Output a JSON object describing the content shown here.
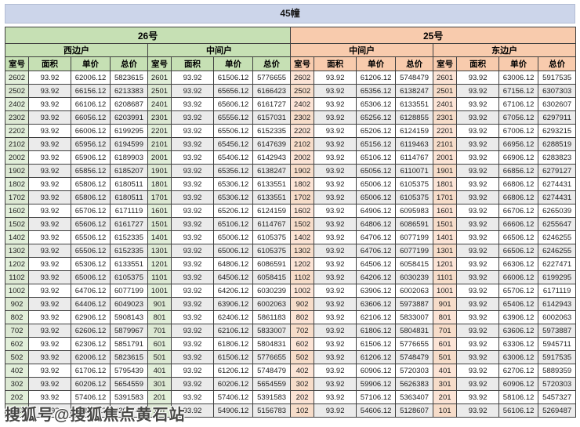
{
  "title": "45幢",
  "watermark": "搜狐号@搜狐焦点黄石站",
  "colors": {
    "title_bar": "#ccd5ea",
    "green_header": "#c6e0b4",
    "green_room_cell": "#e2efda",
    "orange_header": "#f8cbad",
    "orange_room_cell": "#fce4d6",
    "stripe_row": "#ebebeb",
    "grid_border": "#404040"
  },
  "table": {
    "unit_groups": [
      {
        "label": "26号",
        "theme": "green"
      },
      {
        "label": "25号",
        "theme": "orange"
      }
    ],
    "column_headers": [
      "室号",
      "面积",
      "单价",
      "总价"
    ],
    "sections": [
      {
        "position": "西边户",
        "theme": "green",
        "rows": [
          [
            "2602",
            "93.92",
            "62006.12",
            "5823615"
          ],
          [
            "2502",
            "93.92",
            "66156.12",
            "6213383"
          ],
          [
            "2402",
            "93.92",
            "66106.12",
            "6208687"
          ],
          [
            "2302",
            "93.92",
            "66056.12",
            "6203991"
          ],
          [
            "2202",
            "93.92",
            "66006.12",
            "6199295"
          ],
          [
            "2102",
            "93.92",
            "65956.12",
            "6194599"
          ],
          [
            "2002",
            "93.92",
            "65906.12",
            "6189903"
          ],
          [
            "1902",
            "93.92",
            "65856.12",
            "6185207"
          ],
          [
            "1802",
            "93.92",
            "65806.12",
            "6180511"
          ],
          [
            "1702",
            "93.92",
            "65806.12",
            "6180511"
          ],
          [
            "1602",
            "93.92",
            "65706.12",
            "6171119"
          ],
          [
            "1502",
            "93.92",
            "65606.12",
            "6161727"
          ],
          [
            "1402",
            "93.92",
            "65506.12",
            "6152335"
          ],
          [
            "1302",
            "93.92",
            "65506.12",
            "6152335"
          ],
          [
            "1202",
            "93.92",
            "65306.12",
            "6133551"
          ],
          [
            "1102",
            "93.92",
            "65006.12",
            "6105375"
          ],
          [
            "1002",
            "93.92",
            "64706.12",
            "6077199"
          ],
          [
            "902",
            "93.92",
            "64406.12",
            "6049023"
          ],
          [
            "802",
            "93.92",
            "62906.12",
            "5908143"
          ],
          [
            "702",
            "93.92",
            "62606.12",
            "5879967"
          ],
          [
            "602",
            "93.92",
            "62306.12",
            "5851791"
          ],
          [
            "502",
            "93.92",
            "62006.12",
            "5823615"
          ],
          [
            "402",
            "93.92",
            "61706.12",
            "5795439"
          ],
          [
            "302",
            "93.92",
            "60206.12",
            "5654559"
          ],
          [
            "202",
            "93.92",
            "57406.12",
            "5391583"
          ],
          [
            "102",
            "93.92",
            "55406.12",
            "5203743"
          ]
        ]
      },
      {
        "position": "中间户",
        "theme": "green",
        "rows": [
          [
            "2601",
            "93.92",
            "61506.12",
            "5776655"
          ],
          [
            "2501",
            "93.92",
            "65656.12",
            "6166423"
          ],
          [
            "2401",
            "93.92",
            "65606.12",
            "6161727"
          ],
          [
            "2301",
            "93.92",
            "65556.12",
            "6157031"
          ],
          [
            "2201",
            "93.92",
            "65506.12",
            "6152335"
          ],
          [
            "2101",
            "93.92",
            "65456.12",
            "6147639"
          ],
          [
            "2001",
            "93.92",
            "65406.12",
            "6142943"
          ],
          [
            "1901",
            "93.92",
            "65356.12",
            "6138247"
          ],
          [
            "1801",
            "93.92",
            "65306.12",
            "6133551"
          ],
          [
            "1701",
            "93.92",
            "65306.12",
            "6133551"
          ],
          [
            "1601",
            "93.92",
            "65206.12",
            "6124159"
          ],
          [
            "1501",
            "93.92",
            "65106.12",
            "6114767"
          ],
          [
            "1401",
            "93.92",
            "65006.12",
            "6105375"
          ],
          [
            "1301",
            "93.92",
            "65006.12",
            "6105375"
          ],
          [
            "1201",
            "93.92",
            "64806.12",
            "6086591"
          ],
          [
            "1101",
            "93.92",
            "64506.12",
            "6058415"
          ],
          [
            "1001",
            "93.92",
            "64206.12",
            "6030239"
          ],
          [
            "901",
            "93.92",
            "63906.12",
            "6002063"
          ],
          [
            "801",
            "93.92",
            "62406.12",
            "5861183"
          ],
          [
            "701",
            "93.92",
            "62106.12",
            "5833007"
          ],
          [
            "601",
            "93.92",
            "61806.12",
            "5804831"
          ],
          [
            "501",
            "93.92",
            "61506.12",
            "5776655"
          ],
          [
            "401",
            "93.92",
            "61206.12",
            "5748479"
          ],
          [
            "301",
            "93.92",
            "60206.12",
            "5654559"
          ],
          [
            "201",
            "93.92",
            "57406.12",
            "5391583"
          ],
          [
            "101",
            "93.92",
            "54906.12",
            "5156783"
          ]
        ]
      },
      {
        "position": "中间户",
        "theme": "orange",
        "rows": [
          [
            "2602",
            "93.92",
            "61206.12",
            "5748479"
          ],
          [
            "2502",
            "93.92",
            "65356.12",
            "6138247"
          ],
          [
            "2402",
            "93.92",
            "65306.12",
            "6133551"
          ],
          [
            "2302",
            "93.92",
            "65256.12",
            "6128855"
          ],
          [
            "2202",
            "93.92",
            "65206.12",
            "6124159"
          ],
          [
            "2102",
            "93.92",
            "65156.12",
            "6119463"
          ],
          [
            "2002",
            "93.92",
            "65106.12",
            "6114767"
          ],
          [
            "1902",
            "93.92",
            "65056.12",
            "6110071"
          ],
          [
            "1802",
            "93.92",
            "65006.12",
            "6105375"
          ],
          [
            "1702",
            "93.92",
            "65006.12",
            "6105375"
          ],
          [
            "1602",
            "93.92",
            "64906.12",
            "6095983"
          ],
          [
            "1502",
            "93.92",
            "64806.12",
            "6086591"
          ],
          [
            "1402",
            "93.92",
            "64706.12",
            "6077199"
          ],
          [
            "1302",
            "93.92",
            "64706.12",
            "6077199"
          ],
          [
            "1202",
            "93.92",
            "64506.12",
            "6058415"
          ],
          [
            "1102",
            "93.92",
            "64206.12",
            "6030239"
          ],
          [
            "1002",
            "93.92",
            "63906.12",
            "6002063"
          ],
          [
            "902",
            "93.92",
            "63606.12",
            "5973887"
          ],
          [
            "802",
            "93.92",
            "62106.12",
            "5833007"
          ],
          [
            "702",
            "93.92",
            "61806.12",
            "5804831"
          ],
          [
            "602",
            "93.92",
            "61506.12",
            "5776655"
          ],
          [
            "502",
            "93.92",
            "61206.12",
            "5748479"
          ],
          [
            "402",
            "93.92",
            "60906.12",
            "5720303"
          ],
          [
            "302",
            "93.92",
            "59906.12",
            "5626383"
          ],
          [
            "202",
            "93.92",
            "57106.12",
            "5363407"
          ],
          [
            "102",
            "93.92",
            "54606.12",
            "5128607"
          ]
        ]
      },
      {
        "position": "东边户",
        "theme": "orange",
        "rows": [
          [
            "2601",
            "93.92",
            "63006.12",
            "5917535"
          ],
          [
            "2501",
            "93.92",
            "67156.12",
            "6307303"
          ],
          [
            "2401",
            "93.92",
            "67106.12",
            "6302607"
          ],
          [
            "2301",
            "93.92",
            "67056.12",
            "6297911"
          ],
          [
            "2201",
            "93.92",
            "67006.12",
            "6293215"
          ],
          [
            "2101",
            "93.92",
            "66956.12",
            "6288519"
          ],
          [
            "2001",
            "93.92",
            "66906.12",
            "6283823"
          ],
          [
            "1901",
            "93.92",
            "66856.12",
            "6279127"
          ],
          [
            "1801",
            "93.92",
            "66806.12",
            "6274431"
          ],
          [
            "1701",
            "93.92",
            "66806.12",
            "6274431"
          ],
          [
            "1601",
            "93.92",
            "66706.12",
            "6265039"
          ],
          [
            "1501",
            "93.92",
            "66606.12",
            "6255647"
          ],
          [
            "1401",
            "93.92",
            "66506.12",
            "6246255"
          ],
          [
            "1301",
            "93.92",
            "66506.12",
            "6246255"
          ],
          [
            "1201",
            "93.92",
            "66306.12",
            "6227471"
          ],
          [
            "1101",
            "93.92",
            "66006.12",
            "6199295"
          ],
          [
            "1001",
            "93.92",
            "65706.12",
            "6171119"
          ],
          [
            "901",
            "93.92",
            "65406.12",
            "6142943"
          ],
          [
            "801",
            "93.92",
            "63906.12",
            "6002063"
          ],
          [
            "701",
            "93.92",
            "63606.12",
            "5973887"
          ],
          [
            "601",
            "93.92",
            "63306.12",
            "5945711"
          ],
          [
            "501",
            "93.92",
            "63006.12",
            "5917535"
          ],
          [
            "401",
            "93.92",
            "62706.12",
            "5889359"
          ],
          [
            "301",
            "93.92",
            "60906.12",
            "5720303"
          ],
          [
            "201",
            "93.92",
            "58106.12",
            "5457327"
          ],
          [
            "101",
            "93.92",
            "56106.12",
            "5269487"
          ]
        ]
      }
    ]
  }
}
